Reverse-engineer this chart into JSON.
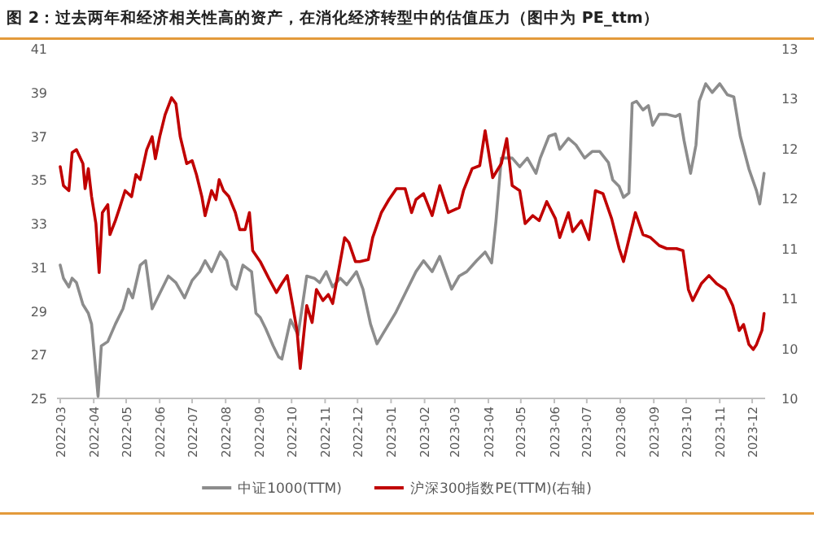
{
  "chart_data": {
    "type": "line",
    "title": "图 2：过去两年和经济相关性高的资产，在消化经济转型中的估值压力（图中为 PE_ttm）",
    "xlim": [
      "2022-02-26",
      "2023-12-13"
    ],
    "xticks": [
      "2022-03",
      "2022-04",
      "2022-05",
      "2022-06",
      "2022-07",
      "2022-08",
      "2022-09",
      "2022-10",
      "2022-11",
      "2022-12",
      "2023-01",
      "2023-02",
      "2023-03",
      "2023-04",
      "2023-05",
      "2023-06",
      "2023-07",
      "2023-08",
      "2023-09",
      "2023-10",
      "2023-11",
      "2023-12"
    ],
    "ylim": [
      25,
      41
    ],
    "yticks": [
      25,
      27,
      29,
      31,
      33,
      35,
      37,
      39,
      41
    ],
    "y2lim": [
      9.75,
      13.25
    ],
    "y2ticks": [
      {
        "value": 9.75,
        "label": "10"
      },
      {
        "value": 10.25,
        "label": "10"
      },
      {
        "value": 10.75,
        "label": "11"
      },
      {
        "value": 11.25,
        "label": "11"
      },
      {
        "value": 11.75,
        "label": "12"
      },
      {
        "value": 12.25,
        "label": "12"
      },
      {
        "value": 12.75,
        "label": "13"
      },
      {
        "value": 13.25,
        "label": "13"
      }
    ],
    "legend": "bottom",
    "series": [
      {
        "name": "中证1000(TTM)",
        "color": "#8c8c8c",
        "x": [
          "2022-03-01",
          "2022-03-04",
          "2022-03-09",
          "2022-03-12",
          "2022-03-16",
          "2022-03-22",
          "2022-03-27",
          "2022-03-30",
          "2022-04-05",
          "2022-04-08",
          "2022-04-14",
          "2022-04-21",
          "2022-04-28",
          "2022-05-03",
          "2022-05-07",
          "2022-05-14",
          "2022-05-19",
          "2022-05-25",
          "2022-06-01",
          "2022-06-09",
          "2022-06-16",
          "2022-06-24",
          "2022-07-01",
          "2022-07-08",
          "2022-07-13",
          "2022-07-19",
          "2022-07-27",
          "2022-08-02",
          "2022-08-07",
          "2022-08-11",
          "2022-08-17",
          "2022-08-25",
          "2022-08-29",
          "2022-09-02",
          "2022-09-07",
          "2022-09-14",
          "2022-09-19",
          "2022-09-22",
          "2022-09-30",
          "2022-10-07",
          "2022-10-15",
          "2022-10-22",
          "2022-10-27",
          "2022-11-02",
          "2022-11-08",
          "2022-11-15",
          "2022-11-21",
          "2022-11-30",
          "2022-12-06",
          "2022-12-13",
          "2022-12-19",
          "2022-12-25",
          "2023-01-05",
          "2023-01-14",
          "2023-01-24",
          "2023-01-31",
          "2023-02-08",
          "2023-02-15",
          "2023-02-26",
          "2023-03-05",
          "2023-03-12",
          "2023-03-21",
          "2023-03-29",
          "2023-04-04",
          "2023-04-08",
          "2023-04-13",
          "2023-04-18",
          "2023-04-23",
          "2023-04-30",
          "2023-05-07",
          "2023-05-15",
          "2023-05-19",
          "2023-05-27",
          "2023-06-02",
          "2023-06-06",
          "2023-06-14",
          "2023-06-21",
          "2023-06-29",
          "2023-07-06",
          "2023-07-13",
          "2023-07-21",
          "2023-07-25",
          "2023-07-31",
          "2023-08-04",
          "2023-08-09",
          "2023-08-12",
          "2023-08-16",
          "2023-08-22",
          "2023-08-27",
          "2023-08-31",
          "2023-09-06",
          "2023-09-13",
          "2023-09-21",
          "2023-09-25",
          "2023-09-29",
          "2023-10-05",
          "2023-10-10",
          "2023-10-13",
          "2023-10-19",
          "2023-10-25",
          "2023-11-01",
          "2023-11-08",
          "2023-11-14",
          "2023-11-20",
          "2023-11-28",
          "2023-12-05",
          "2023-12-08",
          "2023-12-12"
        ],
        "values": [
          31.1,
          30.5,
          30.1,
          30.5,
          30.3,
          29.3,
          28.9,
          28.4,
          25.1,
          27.4,
          27.6,
          28.4,
          29.1,
          30.0,
          29.6,
          31.1,
          31.3,
          29.1,
          29.8,
          30.6,
          30.3,
          29.6,
          30.4,
          30.8,
          31.3,
          30.8,
          31.7,
          31.3,
          30.2,
          30.0,
          31.1,
          30.8,
          28.9,
          28.7,
          28.2,
          27.4,
          26.9,
          26.8,
          28.6,
          27.9,
          30.6,
          30.5,
          30.3,
          30.8,
          30.1,
          30.5,
          30.2,
          30.8,
          30.0,
          28.4,
          27.5,
          28.0,
          28.9,
          29.8,
          30.8,
          31.3,
          30.8,
          31.5,
          30.0,
          30.6,
          30.8,
          31.3,
          31.7,
          31.2,
          33.1,
          36.0,
          36.0,
          36.0,
          35.6,
          36.0,
          35.3,
          36.0,
          37.0,
          37.1,
          36.4,
          36.9,
          36.6,
          36.0,
          36.3,
          36.3,
          35.8,
          35.0,
          34.7,
          34.2,
          34.4,
          38.5,
          38.6,
          38.2,
          38.4,
          37.5,
          38.0,
          38.0,
          37.9,
          38.0,
          36.8,
          35.3,
          36.6,
          38.6,
          39.4,
          39.0,
          39.4,
          38.9,
          38.8,
          37.0,
          35.5,
          34.5,
          33.9,
          35.3
        ]
      },
      {
        "name": "沪深300指数PE(TTM)(右轴)",
        "color": "#c00000",
        "axis": "y2",
        "x": [
          "2022-03-01",
          "2022-03-04",
          "2022-03-09",
          "2022-03-12",
          "2022-03-16",
          "2022-03-22",
          "2022-03-24",
          "2022-03-27",
          "2022-03-30",
          "2022-04-03",
          "2022-04-06",
          "2022-04-09",
          "2022-04-14",
          "2022-04-16",
          "2022-04-21",
          "2022-04-25",
          "2022-04-30",
          "2022-05-06",
          "2022-05-10",
          "2022-05-14",
          "2022-05-20",
          "2022-05-25",
          "2022-05-28",
          "2022-06-01",
          "2022-06-06",
          "2022-06-12",
          "2022-06-16",
          "2022-06-20",
          "2022-06-26",
          "2022-07-01",
          "2022-07-05",
          "2022-07-10",
          "2022-07-13",
          "2022-07-19",
          "2022-07-23",
          "2022-07-26",
          "2022-07-30",
          "2022-08-04",
          "2022-08-10",
          "2022-08-14",
          "2022-08-19",
          "2022-08-23",
          "2022-08-26",
          "2022-09-02",
          "2022-09-10",
          "2022-09-17",
          "2022-09-22",
          "2022-09-27",
          "2022-10-02",
          "2022-10-06",
          "2022-10-09",
          "2022-10-15",
          "2022-10-20",
          "2022-10-24",
          "2022-10-30",
          "2022-11-04",
          "2022-11-08",
          "2022-11-14",
          "2022-11-19",
          "2022-11-23",
          "2022-11-29",
          "2022-12-03",
          "2022-12-11",
          "2022-12-15",
          "2022-12-23",
          "2022-12-30",
          "2023-01-06",
          "2023-01-14",
          "2023-01-20",
          "2023-01-24",
          "2023-01-31",
          "2023-02-08",
          "2023-02-15",
          "2023-02-23",
          "2023-03-05",
          "2023-03-09",
          "2023-03-17",
          "2023-03-24",
          "2023-03-29",
          "2023-04-05",
          "2023-04-13",
          "2023-04-18",
          "2023-04-23",
          "2023-04-30",
          "2023-05-05",
          "2023-05-12",
          "2023-05-18",
          "2023-05-25",
          "2023-06-02",
          "2023-06-06",
          "2023-06-14",
          "2023-06-18",
          "2023-06-26",
          "2023-07-03",
          "2023-07-09",
          "2023-07-16",
          "2023-07-24",
          "2023-07-31",
          "2023-08-04",
          "2023-08-15",
          "2023-08-22",
          "2023-08-29",
          "2023-09-06",
          "2023-09-13",
          "2023-09-22",
          "2023-09-28",
          "2023-10-03",
          "2023-10-07",
          "2023-10-15",
          "2023-10-22",
          "2023-10-29",
          "2023-11-06",
          "2023-11-13",
          "2023-11-19",
          "2023-11-23",
          "2023-11-28",
          "2023-12-02",
          "2023-12-05",
          "2023-12-10",
          "2023-12-12"
        ],
        "values": [
          12.07,
          11.88,
          11.83,
          12.21,
          12.24,
          12.1,
          11.85,
          12.05,
          11.77,
          11.5,
          11.01,
          11.61,
          11.69,
          11.39,
          11.53,
          11.66,
          11.83,
          11.77,
          11.99,
          11.94,
          12.24,
          12.37,
          12.15,
          12.37,
          12.59,
          12.76,
          12.7,
          12.37,
          12.1,
          12.13,
          11.99,
          11.77,
          11.58,
          11.83,
          11.74,
          11.94,
          11.83,
          11.77,
          11.61,
          11.44,
          11.44,
          11.61,
          11.23,
          11.12,
          10.95,
          10.81,
          10.9,
          10.98,
          10.68,
          10.43,
          10.05,
          10.68,
          10.51,
          10.84,
          10.73,
          10.79,
          10.7,
          11.06,
          11.36,
          11.31,
          11.12,
          11.12,
          11.14,
          11.36,
          11.61,
          11.74,
          11.85,
          11.85,
          11.61,
          11.74,
          11.8,
          11.58,
          11.88,
          11.61,
          11.66,
          11.83,
          12.05,
          12.08,
          12.43,
          11.96,
          12.1,
          12.35,
          11.88,
          11.83,
          11.5,
          11.58,
          11.53,
          11.72,
          11.55,
          11.36,
          11.61,
          11.42,
          11.53,
          11.34,
          11.83,
          11.8,
          11.55,
          11.25,
          11.12,
          11.61,
          11.39,
          11.36,
          11.28,
          11.25,
          11.25,
          11.23,
          10.84,
          10.73,
          10.9,
          10.98,
          10.9,
          10.84,
          10.68,
          10.43,
          10.49,
          10.29,
          10.24,
          10.29,
          10.43,
          10.6
        ]
      }
    ]
  }
}
